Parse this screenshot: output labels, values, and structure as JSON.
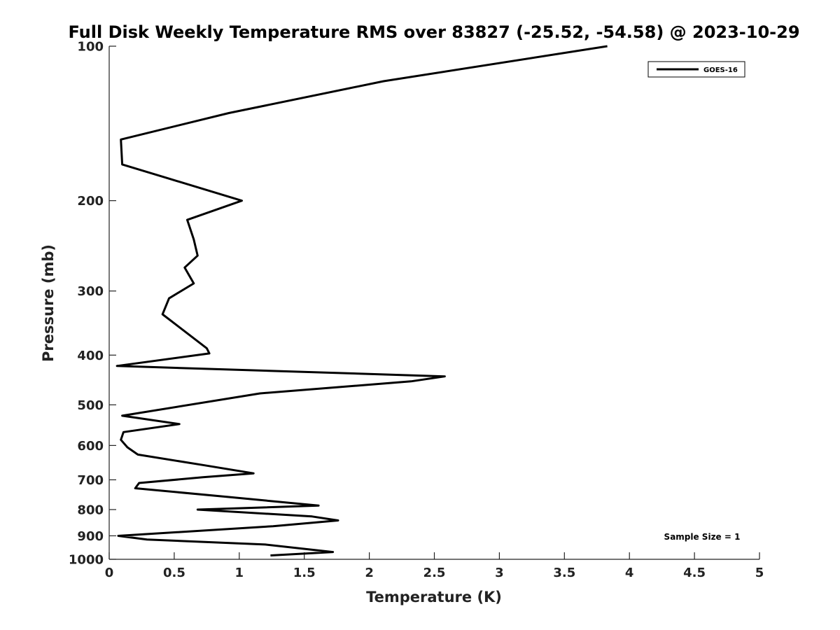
{
  "chart_data": {
    "type": "line",
    "title": "Full Disk Weekly Temperature RMS over 83827 (-25.52, -54.58) @ 2023-10-29",
    "xlabel": "Temperature (K)",
    "ylabel": "Pressure (mb)",
    "xlim": [
      0,
      5
    ],
    "ylim": [
      1000,
      100
    ],
    "y_scale": "log",
    "y_reversed": true,
    "x_ticks": [
      0,
      0.5,
      1,
      1.5,
      2,
      2.5,
      3,
      3.5,
      4,
      4.5,
      5
    ],
    "x_tick_labels": [
      "0",
      "0.5",
      "1",
      "1.5",
      "2",
      "2.5",
      "3",
      "3.5",
      "4",
      "4.5",
      "5"
    ],
    "y_ticks": [
      100,
      200,
      300,
      400,
      500,
      600,
      700,
      800,
      900,
      1000
    ],
    "y_tick_labels": [
      "100",
      "200",
      "300",
      "400",
      "500",
      "600",
      "700",
      "800",
      "900",
      "1000"
    ],
    "grid": false,
    "legend_position": "top-right",
    "annotation": "Sample Size = 1",
    "series": [
      {
        "name": "GOES-16",
        "color": "#000000",
        "x": [
          3.83,
          2.11,
          0.92,
          0.09,
          0.1,
          1.02,
          0.6,
          0.65,
          0.68,
          0.58,
          0.65,
          0.46,
          0.41,
          0.75,
          0.77,
          0.06,
          2.58,
          2.32,
          1.16,
          0.1,
          0.54,
          0.11,
          0.09,
          0.14,
          0.22,
          0.72,
          1.11,
          0.72,
          0.23,
          0.2,
          0.89,
          1.61,
          0.68,
          1.56,
          1.76,
          1.26,
          0.07,
          0.29,
          1.2,
          1.72,
          1.24
        ],
        "y": [
          100,
          117,
          135,
          152,
          170,
          200,
          218,
          238,
          256,
          270,
          290,
          310,
          333,
          388,
          397,
          420,
          440,
          450,
          475,
          525,
          545,
          565,
          585,
          605,
          625,
          655,
          680,
          692,
          710,
          727,
          755,
          786,
          800,
          825,
          840,
          862,
          900,
          915,
          936,
          968,
          983
        ]
      }
    ]
  }
}
